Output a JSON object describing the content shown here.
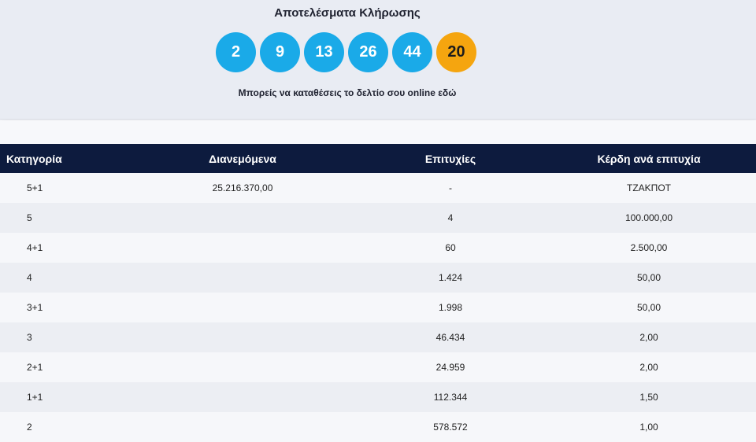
{
  "hero": {
    "title": "Αποτελέσματα Κλήρωσης",
    "numbers": [
      "2",
      "9",
      "13",
      "26",
      "44"
    ],
    "bonus": "20",
    "deposit_text": "Μπορείς να καταθέσεις το δελτίο σου online εδώ"
  },
  "colors": {
    "ball": "#1aaae8",
    "bonus_ball": "#f5a50f",
    "table_header": "#0d1b3e"
  },
  "table": {
    "headers": [
      "Κατηγορία",
      "Διανεμόμενα",
      "Επιτυχίες",
      "Κέρδη ανά επιτυχία"
    ],
    "rows": [
      {
        "category": "5+1",
        "distributed": "25.216.370,00",
        "winners": "-",
        "prize": "ΤΖΑΚΠΟΤ"
      },
      {
        "category": "5",
        "distributed": "",
        "winners": "4",
        "prize": "100.000,00"
      },
      {
        "category": "4+1",
        "distributed": "",
        "winners": "60",
        "prize": "2.500,00"
      },
      {
        "category": "4",
        "distributed": "",
        "winners": "1.424",
        "prize": "50,00"
      },
      {
        "category": "3+1",
        "distributed": "",
        "winners": "1.998",
        "prize": "50,00"
      },
      {
        "category": "3",
        "distributed": "",
        "winners": "46.434",
        "prize": "2,00"
      },
      {
        "category": "2+1",
        "distributed": "",
        "winners": "24.959",
        "prize": "2,00"
      },
      {
        "category": "1+1",
        "distributed": "",
        "winners": "112.344",
        "prize": "1,50"
      },
      {
        "category": "2",
        "distributed": "",
        "winners": "578.572",
        "prize": "1,00"
      }
    ]
  }
}
